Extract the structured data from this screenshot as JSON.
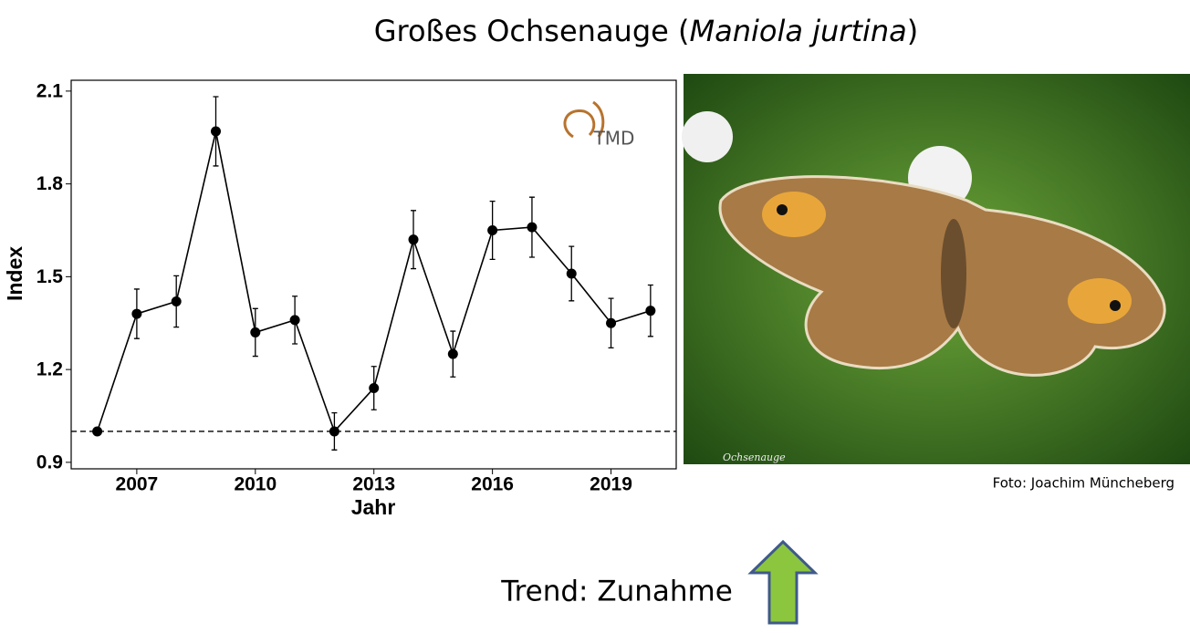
{
  "chart_data": {
    "type": "line",
    "title_parts": [
      "Großes Ochsenauge (",
      "Maniola jurtina",
      ")"
    ],
    "x_label": "Jahr",
    "y_label": "Index",
    "x": [
      2006,
      2007,
      2008,
      2009,
      2010,
      2011,
      2012,
      2013,
      2014,
      2015,
      2016,
      2017,
      2018,
      2019,
      2020
    ],
    "series": [
      {
        "name": "Index",
        "color": "#000000",
        "values": [
          1.0,
          1.38,
          1.42,
          1.97,
          1.32,
          1.36,
          1.0,
          1.14,
          1.62,
          1.25,
          1.65,
          1.66,
          1.51,
          1.35,
          1.39
        ],
        "errors": [
          0,
          0.08,
          0.083,
          0.112,
          0.077,
          0.077,
          0.06,
          0.07,
          0.094,
          0.074,
          0.094,
          0.097,
          0.088,
          0.08,
          0.083
        ]
      }
    ],
    "reference_line": 1,
    "xlim": [
      2005.34,
      2020.65
    ],
    "xticks": [
      2007,
      2010,
      2013,
      2016,
      2019
    ],
    "ylim": [
      0.879,
      2.135
    ],
    "yticks": [
      0.9,
      1.2,
      1.5,
      1.8,
      2.1
    ],
    "logo": "TMD",
    "photo_caption": "Ochsenauge",
    "photo_credit": "Foto: Joachim Müncheberg",
    "trend": "Trend: Zunahme"
  }
}
